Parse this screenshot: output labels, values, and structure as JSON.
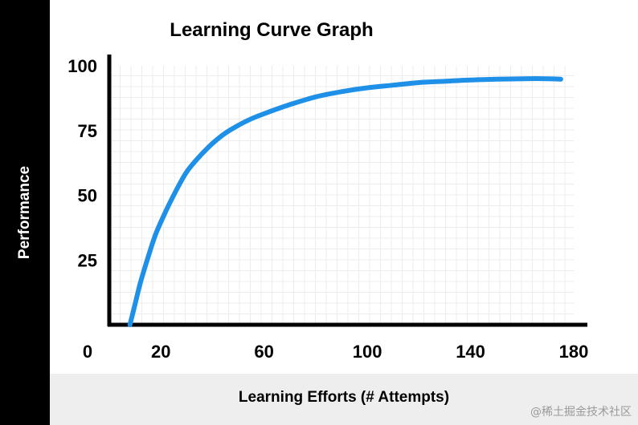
{
  "chart_data": {
    "type": "line",
    "title": "Learning Curve Graph",
    "xlabel": "Learning Efforts (# Attempts)",
    "ylabel": "Performance",
    "xlim": [
      0,
      180
    ],
    "ylim": [
      0,
      100
    ],
    "x_ticks": [
      0,
      20,
      60,
      100,
      140,
      180
    ],
    "y_ticks": [
      25,
      50,
      75,
      100
    ],
    "grid": true,
    "color": "#1e90e8",
    "series": [
      {
        "x": [
          8,
          10,
          12,
          15,
          18,
          22,
          26,
          30,
          35,
          40,
          45,
          50,
          55,
          60,
          70,
          80,
          90,
          100,
          110,
          120,
          130,
          140,
          150,
          160,
          170,
          175
        ],
        "values": [
          0,
          8,
          16,
          26,
          35,
          44,
          52,
          59,
          65,
          70,
          74,
          77,
          79.5,
          81.5,
          85,
          88,
          90,
          91.5,
          92.5,
          93.5,
          94,
          94.5,
          94.8,
          95,
          95,
          94.8
        ]
      }
    ]
  },
  "watermark": "@稀土掘金技术社区"
}
